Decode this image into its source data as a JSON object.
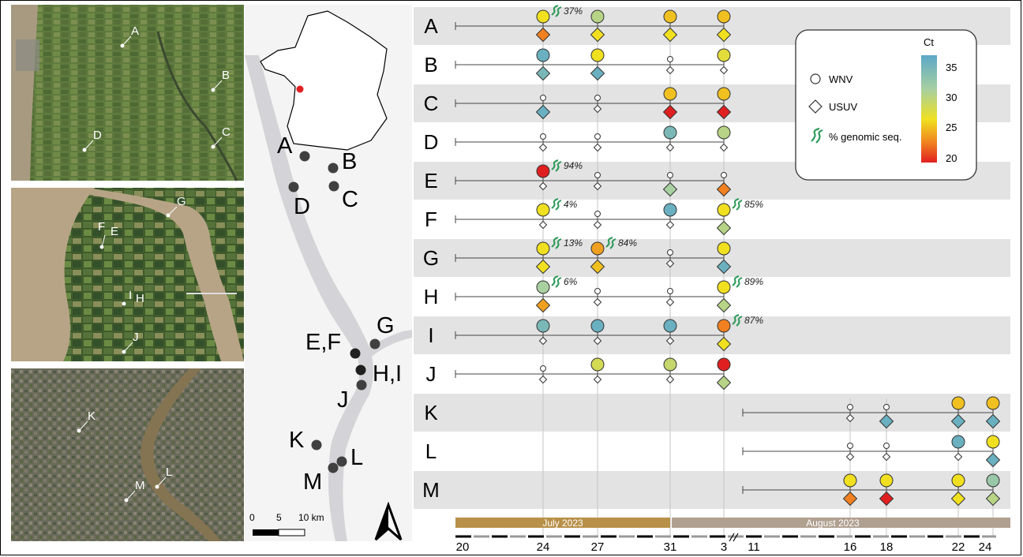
{
  "satellite_labels": {
    "panel1": [
      "A",
      "B",
      "C",
      "D"
    ],
    "panel2": [
      "F",
      "E",
      "G",
      "I",
      "H",
      "J"
    ],
    "panel3": [
      "K",
      "L",
      "M"
    ]
  },
  "overview_map": {
    "site_labels": [
      "A",
      "B",
      "C",
      "D",
      "E,F",
      "G",
      "H,I",
      "J",
      "K",
      "L",
      "M"
    ],
    "scale_bar": {
      "ticks": [
        "0",
        "5",
        "10 km"
      ]
    }
  },
  "timeline": {
    "sites": [
      "A",
      "B",
      "C",
      "D",
      "E",
      "F",
      "G",
      "H",
      "I",
      "J",
      "K",
      "L",
      "M"
    ],
    "months": [
      "July 2023",
      "August 2023"
    ],
    "axis_ticks": [
      "20",
      "24",
      "27",
      "31",
      "3",
      "11",
      "16",
      "18",
      "22",
      "24"
    ],
    "colors": {
      "ct35": "#5ba8c8",
      "ct30": "#a8d0a0",
      "ct25": "#f0e020",
      "ct22": "#f08020",
      "ct20": "#e02020",
      "negative": "#ffffff",
      "seq_icon": "#2e9a5a",
      "july_bar": "#b89048",
      "august_bar": "#b0a090",
      "stripe": "#e3e3e3"
    }
  },
  "legend": {
    "wnv_label": "WNV",
    "usuv_label": "USUV",
    "seq_label": "% genomic seq.",
    "colorbar_title": "Ct",
    "colorbar_ticks": [
      "35",
      "30",
      "25",
      "20"
    ]
  },
  "samples": [
    {
      "site": "A",
      "date": "24",
      "wnv": 25,
      "usuv": 22,
      "seq": "37%"
    },
    {
      "site": "A",
      "date": "27",
      "wnv": 29,
      "usuv": 25
    },
    {
      "site": "A",
      "date": "31",
      "wnv": 24,
      "usuv": 25
    },
    {
      "site": "A",
      "date": "3",
      "wnv": 24,
      "usuv": 25
    },
    {
      "site": "B",
      "date": "24",
      "wnv": 34,
      "usuv": 33
    },
    {
      "site": "B",
      "date": "27",
      "wnv": 25,
      "usuv": 34
    },
    {
      "site": "B",
      "date": "31",
      "wnv": null,
      "usuv": null
    },
    {
      "site": "B",
      "date": "3",
      "wnv": 26,
      "usuv": null
    },
    {
      "site": "C",
      "date": "24",
      "wnv": null,
      "usuv": 34
    },
    {
      "site": "C",
      "date": "27",
      "wnv": null,
      "usuv": null
    },
    {
      "site": "C",
      "date": "31",
      "wnv": 24,
      "usuv": 20
    },
    {
      "site": "C",
      "date": "3",
      "wnv": 24,
      "usuv": 20
    },
    {
      "site": "D",
      "date": "24",
      "wnv": null,
      "usuv": null
    },
    {
      "site": "D",
      "date": "27",
      "wnv": null,
      "usuv": null
    },
    {
      "site": "D",
      "date": "31",
      "wnv": 33,
      "usuv": null
    },
    {
      "site": "D",
      "date": "3",
      "wnv": 29,
      "usuv": null
    },
    {
      "site": "E",
      "date": "24",
      "wnv": 20,
      "usuv": null,
      "seq": "94%"
    },
    {
      "site": "E",
      "date": "27",
      "wnv": null,
      "usuv": null
    },
    {
      "site": "E",
      "date": "31",
      "wnv": null,
      "usuv": 30
    },
    {
      "site": "E",
      "date": "3",
      "wnv": null,
      "usuv": 22
    },
    {
      "site": "F",
      "date": "24",
      "wnv": 25,
      "usuv": null,
      "seq": "4%"
    },
    {
      "site": "F",
      "date": "27",
      "wnv": null,
      "usuv": null
    },
    {
      "site": "F",
      "date": "31",
      "wnv": 34,
      "usuv": null
    },
    {
      "site": "F",
      "date": "3",
      "wnv": 25,
      "usuv": 29,
      "seq": "85%"
    },
    {
      "site": "G",
      "date": "24",
      "wnv": 25,
      "usuv": 25,
      "seq": "13%"
    },
    {
      "site": "G",
      "date": "27",
      "wnv": 23,
      "usuv": 24,
      "seq": "84%"
    },
    {
      "site": "G",
      "date": "31",
      "wnv": null,
      "usuv": null
    },
    {
      "site": "G",
      "date": "3",
      "wnv": 25,
      "usuv": 34
    },
    {
      "site": "H",
      "date": "24",
      "wnv": 30,
      "usuv": 23,
      "seq": "6%"
    },
    {
      "site": "H",
      "date": "27",
      "wnv": null,
      "usuv": null
    },
    {
      "site": "H",
      "date": "31",
      "wnv": null,
      "usuv": null
    },
    {
      "site": "H",
      "date": "3",
      "wnv": 25,
      "usuv": 29,
      "seq": "89%"
    },
    {
      "site": "I",
      "date": "24",
      "wnv": 33,
      "usuv": null
    },
    {
      "site": "I",
      "date": "27",
      "wnv": 34,
      "usuv": null
    },
    {
      "site": "I",
      "date": "31",
      "wnv": 34,
      "usuv": null
    },
    {
      "site": "I",
      "date": "3",
      "wnv": 22,
      "usuv": 25,
      "seq": "87%"
    },
    {
      "site": "J",
      "date": "24",
      "wnv": null,
      "usuv": null
    },
    {
      "site": "J",
      "date": "27",
      "wnv": 27,
      "usuv": null
    },
    {
      "site": "J",
      "date": "31",
      "wnv": 28,
      "usuv": null
    },
    {
      "site": "J",
      "date": "3",
      "wnv": 20,
      "usuv": 29
    },
    {
      "site": "K",
      "date": "16",
      "wnv": null,
      "usuv": null
    },
    {
      "site": "K",
      "date": "18",
      "wnv": null,
      "usuv": 34
    },
    {
      "site": "K",
      "date": "22",
      "wnv": 24,
      "usuv": 34
    },
    {
      "site": "K",
      "date": "24",
      "wnv": 24,
      "usuv": 34
    },
    {
      "site": "L",
      "date": "16",
      "wnv": null,
      "usuv": null
    },
    {
      "site": "L",
      "date": "18",
      "wnv": null,
      "usuv": null
    },
    {
      "site": "L",
      "date": "22",
      "wnv": 34,
      "usuv": null
    },
    {
      "site": "L",
      "date": "24",
      "wnv": 25,
      "usuv": 34
    },
    {
      "site": "M",
      "date": "16",
      "wnv": 25,
      "usuv": 22
    },
    {
      "site": "M",
      "date": "18",
      "wnv": 25,
      "usuv": 20
    },
    {
      "site": "M",
      "date": "22",
      "wnv": 25,
      "usuv": 25
    },
    {
      "site": "M",
      "date": "24",
      "wnv": 31,
      "usuv": 29
    }
  ]
}
